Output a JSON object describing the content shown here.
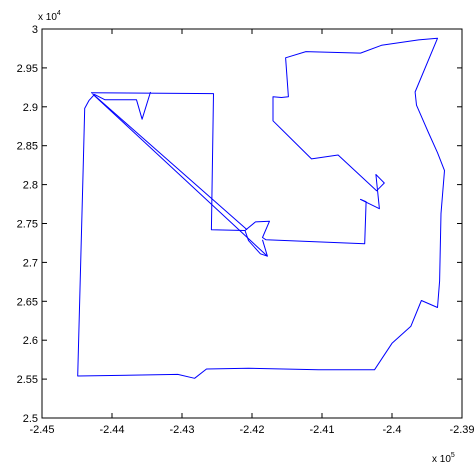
{
  "chart_data": {
    "type": "line",
    "title": "",
    "xlabel": "",
    "ylabel": "",
    "x_exponent_label": {
      "base": "x 10",
      "exp": "5"
    },
    "y_exponent_label": {
      "base": "x 10",
      "exp": "4"
    },
    "xlim": [
      -2.45,
      -2.39
    ],
    "ylim": [
      2.5,
      3.0
    ],
    "x_ticks": [
      -2.45,
      -2.44,
      -2.43,
      -2.42,
      -2.41,
      -2.4,
      -2.39
    ],
    "x_tick_labels": [
      "-2.45",
      "-2.44",
      "-2.43",
      "-2.42",
      "-2.41",
      "-2.4",
      "-2.39"
    ],
    "y_ticks": [
      2.5,
      2.55,
      2.6,
      2.65,
      2.7,
      2.75,
      2.8,
      2.85,
      2.9,
      2.95,
      3.0
    ],
    "y_tick_labels": [
      "2.5",
      "2.55",
      "2.6",
      "2.65",
      "2.7",
      "2.75",
      "2.8",
      "2.85",
      "2.9",
      "2.95",
      "3"
    ],
    "grid": false,
    "series": [
      {
        "color": "#0000ff",
        "points": [
          [
            -2.443,
            2.918
          ],
          [
            -2.4255,
            2.917
          ],
          [
            -2.4258,
            2.742
          ],
          [
            -2.421,
            2.741
          ],
          [
            -2.4195,
            2.752
          ],
          [
            -2.4175,
            2.753
          ],
          [
            -2.4185,
            2.732
          ],
          [
            -2.418,
            2.729
          ],
          [
            -2.4039,
            2.724
          ],
          [
            -2.4037,
            2.778
          ],
          [
            -2.4045,
            2.781
          ],
          [
            -2.4018,
            2.769
          ],
          [
            -2.4023,
            2.813
          ],
          [
            -2.4011,
            2.802
          ],
          [
            -2.4022,
            2.792
          ],
          [
            -2.4077,
            2.838
          ],
          [
            -2.4115,
            2.833
          ],
          [
            -2.417,
            2.882
          ],
          [
            -2.417,
            2.913
          ],
          [
            -2.4158,
            2.912
          ],
          [
            -2.4148,
            2.913
          ],
          [
            -2.4152,
            2.963
          ],
          [
            -2.4123,
            2.971
          ],
          [
            -2.4045,
            2.969
          ],
          [
            -2.4015,
            2.979
          ],
          [
            -2.3962,
            2.986
          ],
          [
            -2.3935,
            2.988
          ],
          [
            -2.3967,
            2.919
          ],
          [
            -2.3965,
            2.902
          ],
          [
            -2.3948,
            2.867
          ],
          [
            -2.3935,
            2.841
          ],
          [
            -2.3925,
            2.818
          ],
          [
            -2.393,
            2.763
          ],
          [
            -2.3932,
            2.676
          ],
          [
            -2.3935,
            2.642
          ],
          [
            -2.3958,
            2.651
          ],
          [
            -2.3973,
            2.618
          ],
          [
            -2.4,
            2.596
          ],
          [
            -2.4025,
            2.562
          ],
          [
            -2.4105,
            2.562
          ],
          [
            -2.4205,
            2.564
          ],
          [
            -2.4265,
            2.563
          ],
          [
            -2.4282,
            2.551
          ],
          [
            -2.4306,
            2.556
          ],
          [
            -2.4449,
            2.554
          ],
          [
            -2.4441,
            2.827
          ],
          [
            -2.4439,
            2.898
          ],
          [
            -2.4433,
            2.908
          ],
          [
            -2.4425,
            2.916
          ],
          [
            -2.441,
            2.909
          ],
          [
            -2.4365,
            2.909
          ],
          [
            -2.4357,
            2.884
          ],
          [
            -2.4345,
            2.919
          ]
        ]
      },
      {
        "color": "#0000ff",
        "points": [
          [
            -2.4428,
            2.917
          ],
          [
            -2.4207,
            2.742
          ]
        ]
      },
      {
        "color": "#0000ff",
        "points": [
          [
            -2.4426,
            2.915
          ],
          [
            -2.4178,
            2.708
          ]
        ]
      },
      {
        "color": "#0000ff",
        "points": [
          [
            -2.4185,
            2.729
          ],
          [
            -2.4178,
            2.708
          ],
          [
            -2.4188,
            2.711
          ],
          [
            -2.4205,
            2.728
          ],
          [
            -2.421,
            2.741
          ]
        ]
      }
    ]
  }
}
